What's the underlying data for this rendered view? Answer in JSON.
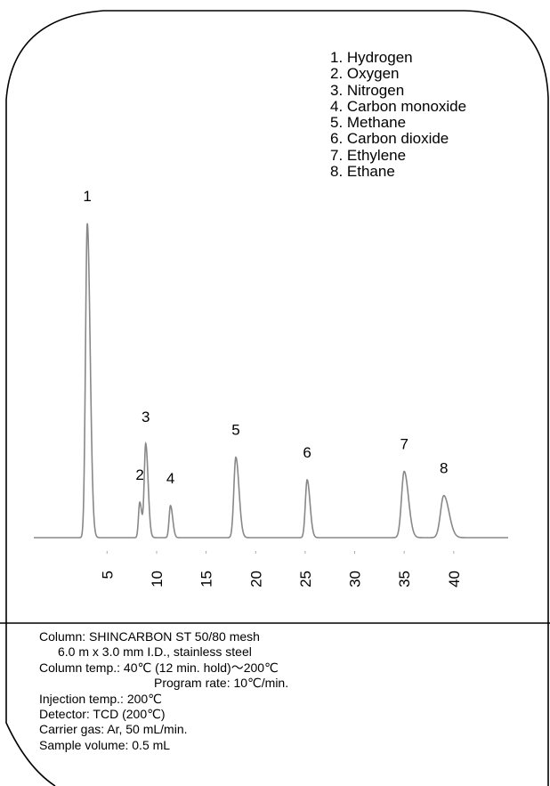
{
  "chart_data": {
    "type": "line",
    "title": "",
    "xlabel": "",
    "ylabel": "",
    "x_ticks": [
      5,
      10,
      15,
      20,
      25,
      30,
      35,
      40
    ],
    "xlim": [
      -2.4,
      45.5
    ],
    "ylim": [
      0,
      100
    ],
    "baseline": 0,
    "peaks": [
      {
        "label": "1",
        "x": 3.0,
        "height": 100,
        "sigma": 0.18
      },
      {
        "label": "2",
        "x": 8.3,
        "height": 11.3,
        "sigma": 0.13
      },
      {
        "label": "3",
        "x": 8.9,
        "height": 29.8,
        "sigma": 0.15
      },
      {
        "label": "4",
        "x": 11.4,
        "height": 10.2,
        "sigma": 0.14
      },
      {
        "label": "5",
        "x": 18.0,
        "height": 25.6,
        "sigma": 0.2
      },
      {
        "label": "6",
        "x": 25.2,
        "height": 18.4,
        "sigma": 0.18
      },
      {
        "label": "7",
        "x": 35.0,
        "height": 21.1,
        "sigma": 0.27
      },
      {
        "label": "8",
        "x": 39.0,
        "height": 13.4,
        "sigma": 0.33
      }
    ],
    "legend": [
      "1. Hydrogen",
      "2. Oxygen",
      "3. Nitrogen",
      "4. Carbon monoxide",
      "5. Methane",
      "6. Carbon dioxide",
      "7. Ethylene",
      "8. Ethane"
    ],
    "legend_placement": "top-right",
    "grid": false
  },
  "conditions": {
    "column": "Column: SHINCARBON ST 50/80 mesh",
    "column_detail": "6.0 m x 3.0 mm I.D., stainless steel",
    "column_temp": "Column temp.: 40℃ (12 min. hold)～200℃",
    "program_rate": "Program rate: 10℃/min.",
    "injection_temp": "Injection temp.: 200℃",
    "detector": "Detector: TCD (200℃)",
    "carrier_gas": "Carrier gas: Ar, 50 mL/min.",
    "sample_volume": "Sample volume: 0.5 mL"
  },
  "colors": {
    "trace": "#888888",
    "frame": "#000000"
  }
}
